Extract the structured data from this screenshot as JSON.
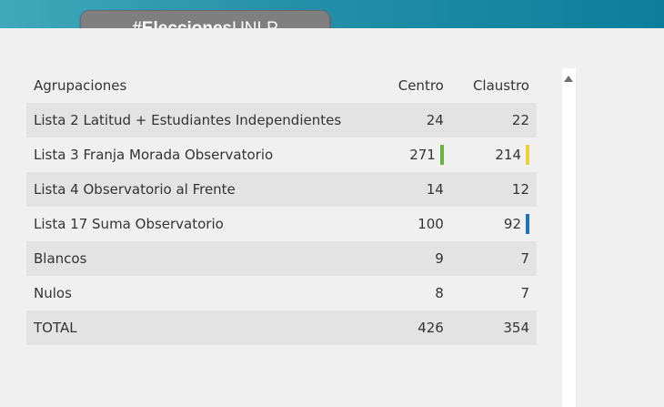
{
  "header": {
    "hashtag_bold": "#Elecciones",
    "hashtag_rest": "UNLP"
  },
  "table": {
    "columns": [
      "Agrupaciones",
      "Centro",
      "Claustro"
    ],
    "rows": [
      {
        "name": "Lista 2 Latitud + Estudiantes Independientes",
        "centro": "24",
        "claustro": "22"
      },
      {
        "name": "Lista 3 Franja Morada Observatorio",
        "centro": "271",
        "claustro": "214"
      },
      {
        "name": "Lista 4 Observatorio al Frente",
        "centro": "14",
        "claustro": "12"
      },
      {
        "name": "Lista 17 Suma Observatorio",
        "centro": "100",
        "claustro": "92"
      },
      {
        "name": "Blancos",
        "centro": "9",
        "claustro": "7"
      },
      {
        "name": "Nulos",
        "centro": "8",
        "claustro": "7"
      },
      {
        "name": "TOTAL",
        "centro": "426",
        "claustro": "354"
      }
    ]
  },
  "winner_markers": {
    "centro_color": "#6ab43e",
    "claustro_color": "#f2cd3b",
    "claustro_second_color": "#1e73be"
  }
}
